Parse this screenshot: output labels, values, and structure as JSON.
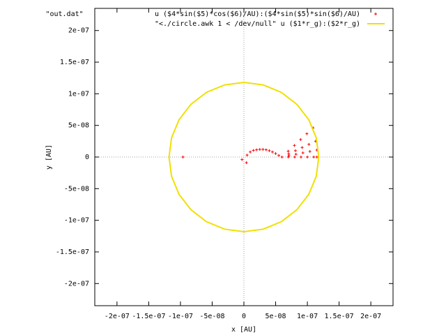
{
  "chart_data": {
    "type": "scatter",
    "xlabel": "x [AU]",
    "ylabel": "y [AU]",
    "xlim": [
      -2.35e-07,
      2.35e-07
    ],
    "ylim": [
      -2.35e-07,
      2.35e-07
    ],
    "xticks": [
      {
        "value": -2e-07,
        "label": "-2e-07"
      },
      {
        "value": -1.5e-07,
        "label": "-1.5e-07"
      },
      {
        "value": -1e-07,
        "label": "-1e-07"
      },
      {
        "value": -5e-08,
        "label": "-5e-08"
      },
      0,
      {
        "value": 5e-08,
        "label": "5e-08"
      },
      {
        "value": 1e-07,
        "label": "1e-07"
      },
      {
        "value": 1.5e-07,
        "label": "1.5e-07"
      },
      {
        "value": 2e-07,
        "label": "2e-07"
      }
    ],
    "yticks": [
      {
        "value": -2e-07,
        "label": "-2e-07"
      },
      {
        "value": -1.5e-07,
        "label": "-1.5e-07"
      },
      {
        "value": -1e-07,
        "label": "-1e-07"
      },
      {
        "value": -5e-08,
        "label": "-5e-08"
      },
      0,
      {
        "value": 5e-08,
        "label": "5e-08"
      },
      {
        "value": 1e-07,
        "label": "1e-07"
      },
      {
        "value": 1.5e-07,
        "label": "1.5e-07"
      },
      {
        "value": 2e-07,
        "label": "2e-07"
      }
    ],
    "zero_axes": true,
    "series": [
      {
        "name": "\"out.dat\"                 u ($4*sin($5)*cos($6)/AU):($4*sin($5)*sin($6)/AU)",
        "mode": "points",
        "color": "#ff0000",
        "x": [
          6.98e-08,
          7.96e-08,
          8.94e-08,
          9.92e-08,
          1.09e-07,
          7.06e-08,
          8.12e-08,
          9.18e-08,
          1.024e-07,
          1.13e-07,
          7.1e-08,
          8.2e-08,
          9.3e-08,
          1.04e-07,
          1.15e-07,
          6e-08,
          7e-08,
          8e-08,
          9e-08,
          1e-07,
          1.1e-07,
          1.15e-07,
          5e-09,
          1e-08,
          1.5e-08,
          2e-08,
          2.5e-08,
          3e-08,
          3.5e-08,
          4e-08,
          4.5e-08,
          5e-08,
          5.5e-08,
          -9.6e-08,
          -3e-09,
          4e-09
        ],
        "y": [
          9.2e-09,
          1.84e-08,
          2.76e-08,
          3.68e-08,
          4.6e-08,
          5e-09,
          1e-08,
          1.5e-08,
          2e-08,
          2.5e-08,
          2.2e-09,
          4.4e-09,
          6.6e-09,
          8.8e-09,
          1.1e-08,
          0,
          0,
          0,
          0,
          0,
          0,
          0,
          3e-09,
          8e-09,
          1.05e-08,
          1.15e-08,
          1.2e-08,
          1.2e-08,
          1.15e-08,
          1e-08,
          8e-09,
          5.5e-09,
          2.5e-09,
          0,
          -4e-09,
          -9e-09
        ]
      },
      {
        "name": "\"<./circle.awk 1 < /dev/null\" u ($1*r_g):($2*r_g)",
        "mode": "lines",
        "color": "#f0e000",
        "x": [
          1.18e-07,
          1.14e-07,
          1.022e-07,
          8.34e-08,
          5.9e-08,
          3.05e-08,
          0,
          -3.05e-08,
          -5.9e-08,
          -8.34e-08,
          -1.022e-07,
          -1.14e-07,
          -1.18e-07,
          -1.14e-07,
          -1.022e-07,
          -8.34e-08,
          -5.9e-08,
          -3.05e-08,
          0,
          3.05e-08,
          5.9e-08,
          8.34e-08,
          1.022e-07,
          1.14e-07,
          1.18e-07
        ],
        "y": [
          0,
          3.05e-08,
          5.9e-08,
          8.34e-08,
          1.022e-07,
          1.14e-07,
          1.18e-07,
          1.14e-07,
          1.022e-07,
          8.34e-08,
          5.9e-08,
          3.05e-08,
          0,
          -3.05e-08,
          -5.9e-08,
          -8.34e-08,
          -1.022e-07,
          -1.14e-07,
          -1.18e-07,
          -1.14e-07,
          -1.022e-07,
          -8.34e-08,
          -5.9e-08,
          -3.05e-08,
          0
        ]
      }
    ]
  }
}
